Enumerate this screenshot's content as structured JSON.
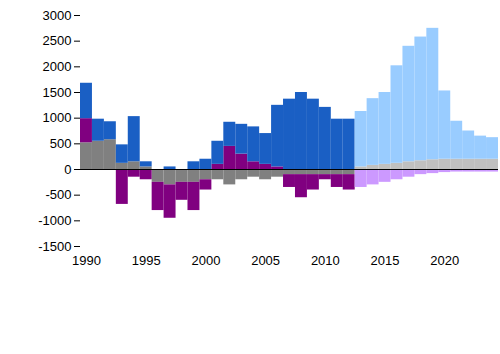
{
  "chart_data": {
    "type": "bar",
    "stacked": true,
    "categories": [
      "1990",
      null,
      null,
      null,
      null,
      "1995",
      null,
      null,
      null,
      null,
      "2000",
      null,
      null,
      null,
      null,
      "2005",
      null,
      null,
      null,
      null,
      "2010",
      null,
      null,
      null,
      null,
      "2015",
      null,
      null,
      null,
      null,
      "2020",
      null,
      null,
      null,
      null
    ],
    "series": [
      {
        "color": "#808080",
        "values": [
          520,
          550,
          580,
          120,
          150,
          50,
          -250,
          -300,
          -250,
          -250,
          -200,
          -200,
          -300,
          -200,
          -150,
          -200,
          -150,
          -100,
          -100,
          -100,
          -100,
          -100,
          -100,
          0,
          0,
          0,
          0,
          0,
          0,
          0,
          0,
          0,
          0,
          0,
          0
        ]
      },
      {
        "color": "#800080",
        "values": [
          470,
          0,
          0,
          -680,
          -150,
          -200,
          -550,
          -650,
          -350,
          -550,
          -200,
          100,
          450,
          300,
          150,
          100,
          50,
          -250,
          -450,
          -300,
          -100,
          -250,
          -300,
          0,
          0,
          0,
          0,
          0,
          0,
          0,
          0,
          0,
          0,
          0,
          0
        ]
      },
      {
        "color": "#1a5fc4",
        "values": [
          690,
          430,
          350,
          360,
          880,
          100,
          0,
          50,
          0,
          150,
          200,
          450,
          470,
          580,
          680,
          600,
          1200,
          1370,
          1500,
          1370,
          1210,
          980,
          980,
          0,
          0,
          0,
          0,
          0,
          0,
          0,
          0,
          0,
          0,
          0,
          0
        ]
      },
      {
        "color": "#c0c0c0",
        "values": [
          0,
          0,
          0,
          0,
          0,
          0,
          0,
          0,
          0,
          0,
          0,
          0,
          0,
          0,
          0,
          0,
          0,
          0,
          0,
          0,
          0,
          0,
          0,
          50,
          80,
          100,
          120,
          150,
          170,
          190,
          200,
          200,
          200,
          200,
          200
        ]
      },
      {
        "color": "#cc99ff",
        "values": [
          0,
          0,
          0,
          0,
          0,
          0,
          0,
          0,
          0,
          0,
          0,
          0,
          0,
          0,
          0,
          0,
          0,
          0,
          0,
          0,
          0,
          0,
          0,
          -350,
          -300,
          -250,
          -200,
          -150,
          -100,
          -80,
          -60,
          -50,
          -50,
          -50,
          -50
        ]
      },
      {
        "color": "#99ccff",
        "values": [
          0,
          0,
          0,
          0,
          0,
          0,
          0,
          0,
          0,
          0,
          0,
          0,
          0,
          0,
          0,
          0,
          0,
          0,
          0,
          0,
          0,
          0,
          0,
          1080,
          1300,
          1400,
          1900,
          2250,
          2410,
          2560,
          1330,
          740,
          550,
          450,
          420
        ]
      }
    ],
    "ylim": [
      -1500,
      3000
    ],
    "yticks": [
      -1500,
      -1000,
      -500,
      0,
      500,
      1000,
      1500,
      2000,
      2500,
      3000
    ],
    "grid": false
  }
}
